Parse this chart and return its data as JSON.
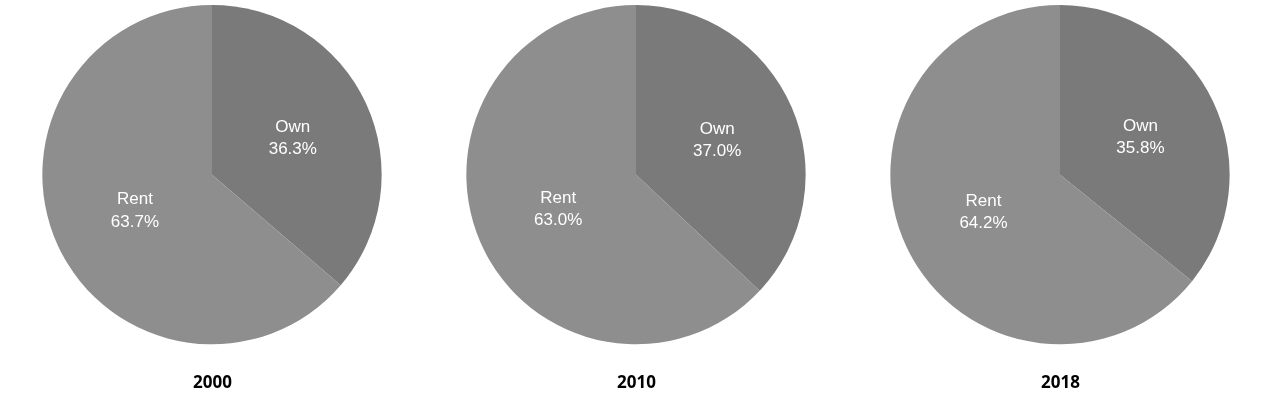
{
  "chart_data": [
    {
      "type": "pie",
      "title": "2000",
      "categories": [
        "Own",
        "Rent"
      ],
      "values": [
        36.3,
        63.7
      ],
      "value_labels": [
        "36.3%",
        "63.7%"
      ],
      "colors": [
        "#7a7a7a",
        "#8e8e8e"
      ]
    },
    {
      "type": "pie",
      "title": "2010",
      "categories": [
        "Own",
        "Rent"
      ],
      "values": [
        37.0,
        63.0
      ],
      "value_labels": [
        "37.0%",
        "63.0%"
      ],
      "colors": [
        "#7a7a7a",
        "#8e8e8e"
      ]
    },
    {
      "type": "pie",
      "title": "2018",
      "categories": [
        "Own",
        "Rent"
      ],
      "values": [
        35.8,
        64.2
      ],
      "value_labels": [
        "35.8%",
        "64.2%"
      ],
      "colors": [
        "#7a7a7a",
        "#8e8e8e"
      ]
    }
  ]
}
